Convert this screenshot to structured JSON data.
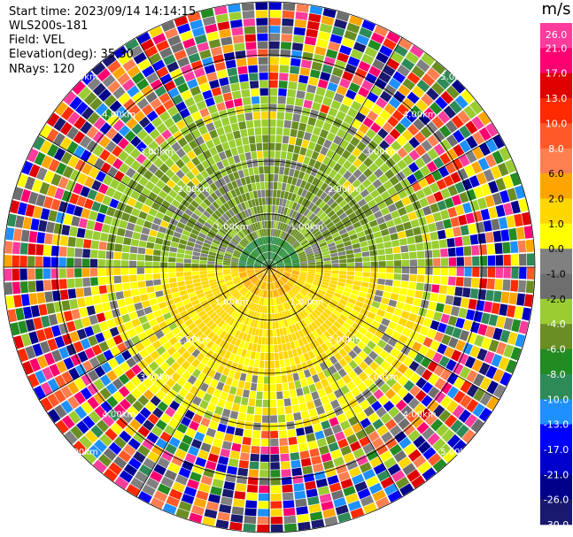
{
  "info": {
    "start_time": "Start time: 2023/09/14 14:14:15",
    "station": "WLS200s-181",
    "field": "Field: VEL",
    "elevation": "Elevation(deg): 35.30",
    "nrays": "NRays: 120"
  },
  "colorbar": {
    "unit": "m/s",
    "ticks": [
      "26.0",
      "21.0",
      "17.0",
      "13.0",
      "10.0",
      "8.0",
      "6.0",
      "2.0",
      "1.0",
      "0.0",
      "-1.0",
      "-2.0",
      "-4.0",
      "-6.0",
      "-8.0",
      "-10.0",
      "-13.0",
      "-17.0",
      "-21.0",
      "-26.0",
      "-30.0"
    ],
    "colors": [
      "#ff3c9c",
      "#ff0070",
      "#e00000",
      "#ff2a00",
      "#ff5a28",
      "#ff7f50",
      "#ffa500",
      "#ffd700",
      "#ffff00",
      "#808080",
      "#6e6e6e",
      "#9acd32",
      "#6b8e23",
      "#228b22",
      "#2e8b57",
      "#1e90ff",
      "#0000ff",
      "#0000cd",
      "#00008b",
      "#191970"
    ]
  },
  "chart_data": {
    "type": "heatmap",
    "projection": "polar-ppi",
    "field": "VEL",
    "units": "m/s",
    "nrays": 120,
    "elevation_deg": 35.3,
    "range_ring_labels": [
      "1.00km",
      "2.00km",
      "3.00km",
      "4.00km",
      "5.00km"
    ],
    "color_scale": [
      -30.0,
      26.0
    ],
    "rings": [
      {
        "label": "1.00km",
        "range_km": 1.0
      },
      {
        "label": "2.00km",
        "range_km": 2.0
      },
      {
        "label": "3.00km",
        "range_km": 3.0
      },
      {
        "label": "4.00km",
        "range_km": 4.0
      },
      {
        "label": "5.00km",
        "range_km": 5.0
      }
    ]
  }
}
